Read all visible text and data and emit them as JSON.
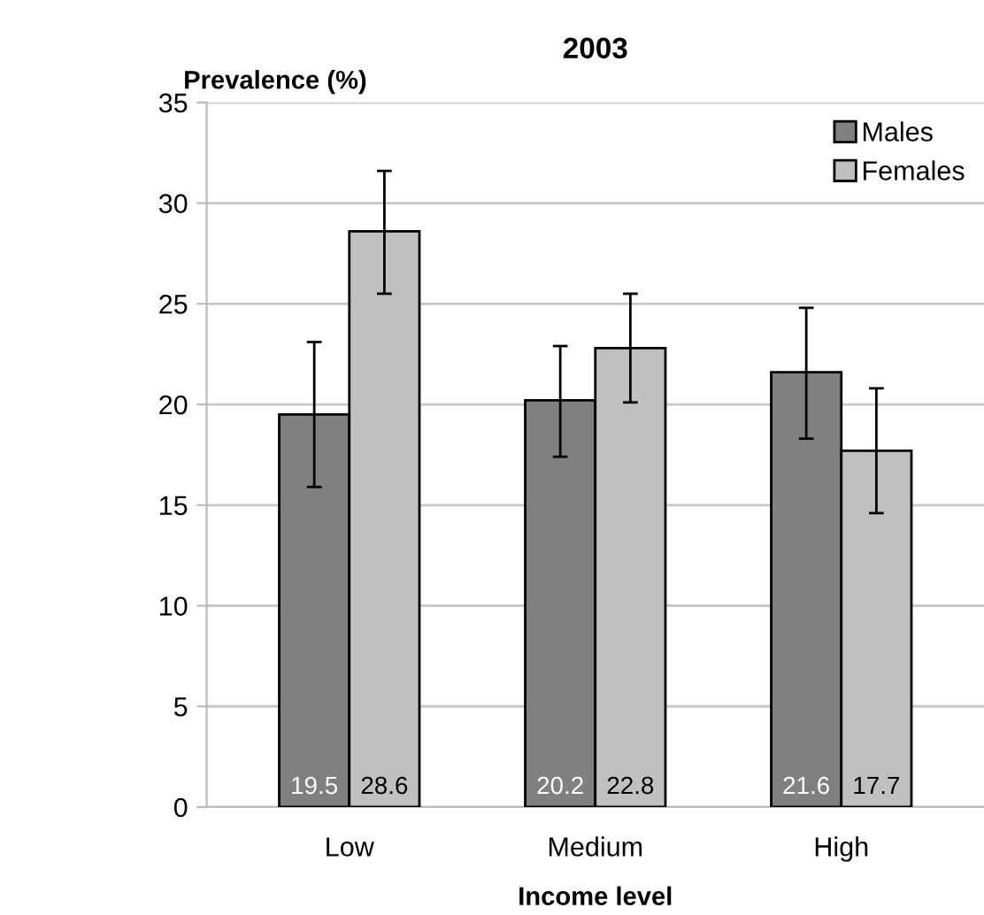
{
  "chart_data": {
    "type": "bar",
    "title": "2003",
    "ylabel": "Prevalence (%)",
    "xlabel": "Income level",
    "categories": [
      "Low",
      "Medium",
      "High"
    ],
    "series": [
      {
        "name": "Males",
        "color": "#808080",
        "values": [
          19.5,
          20.2,
          21.6
        ],
        "errors": [
          [
            15.9,
            23.1
          ],
          [
            17.4,
            22.9
          ],
          [
            18.3,
            24.8
          ]
        ]
      },
      {
        "name": "Females",
        "color": "#c0c0c0",
        "values": [
          28.6,
          22.8,
          17.7
        ],
        "errors": [
          [
            25.5,
            31.6
          ],
          [
            20.1,
            25.5
          ],
          [
            14.6,
            20.8
          ]
        ]
      }
    ],
    "ylim": [
      0,
      35
    ],
    "yticks": [
      0,
      5,
      10,
      15,
      20,
      25,
      30,
      35
    ],
    "grid": "y",
    "legend": "top right",
    "data_labels": true
  }
}
